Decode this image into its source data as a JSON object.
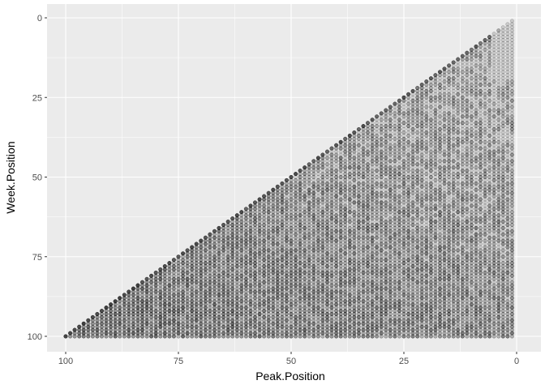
{
  "chart_data": {
    "type": "scatter",
    "title": "",
    "xlabel": "Peak.Position",
    "ylabel": "Week.Position",
    "xlim": [
      100,
      0
    ],
    "ylim": [
      0,
      100
    ],
    "x_reversed": true,
    "y_reversed": true,
    "x_ticks": [
      100,
      75,
      50,
      25,
      0
    ],
    "y_ticks": [
      0,
      25,
      50,
      75,
      100
    ],
    "x_tick_labels": [
      "100",
      "75",
      "50",
      "25",
      "0"
    ],
    "y_tick_labels": [
      "0",
      "25",
      "50",
      "75",
      "100"
    ],
    "grid": true,
    "legend": "none",
    "point_color": "#000000",
    "point_alpha": 0.15,
    "panel_background": "#ebebeb",
    "grid_color": "#ffffff",
    "region_constraint": "week_position >= peak_position",
    "peak_position_range": [
      1,
      100
    ],
    "week_position_range": [
      1,
      100
    ],
    "density_note": "Every integer pair with week >= peak present; denser toward high week and high peak values"
  }
}
